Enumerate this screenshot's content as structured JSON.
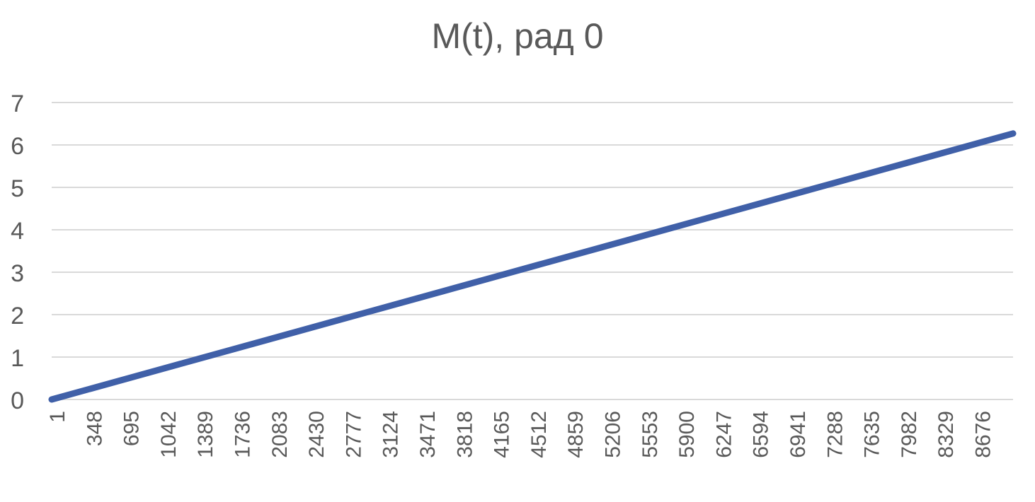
{
  "chart_data": {
    "type": "line",
    "title": "M(t), рад 0",
    "xlabel": "",
    "ylabel": "",
    "x_tick_labels": [
      "1",
      "348",
      "695",
      "1042",
      "1389",
      "1736",
      "2083",
      "2430",
      "2777",
      "3124",
      "3471",
      "3818",
      "4165",
      "4512",
      "4859",
      "5206",
      "5553",
      "5900",
      "6247",
      "6594",
      "6941",
      "7288",
      "7635",
      "7982",
      "8329",
      "8676"
    ],
    "y_tick_labels": [
      "0",
      "1",
      "2",
      "3",
      "4",
      "5",
      "6",
      "7"
    ],
    "xlim": [
      1,
      9000
    ],
    "ylim": [
      0,
      7
    ],
    "grid": true,
    "legend": "none",
    "series": [
      {
        "color": "#4060a8",
        "points": [
          [
            1,
            0
          ],
          [
            9000,
            6.27
          ]
        ]
      }
    ]
  }
}
